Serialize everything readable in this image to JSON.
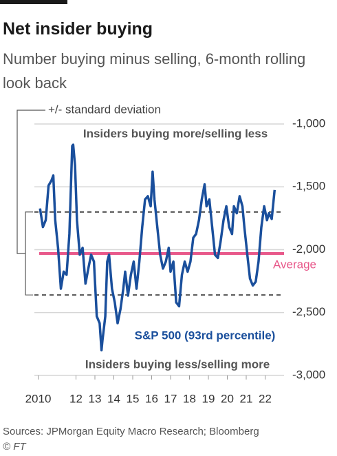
{
  "chart_data": {
    "type": "line",
    "title": "Net insider buying",
    "subtitle": "Number buying minus selling, 6-month rolling look back",
    "source": "Sources: JPMorgan Equity Macro Research; Bloomberg",
    "credit": "© FT",
    "annotations": {
      "top": "Insiders buying more/selling less",
      "bottom": "Insiders buying less/selling more"
    },
    "average": {
      "value": -2030,
      "label": "Average",
      "color": "#e8588a"
    },
    "std_band": {
      "upper": -1700,
      "lower": -2360,
      "label": "+/- standard deviation"
    },
    "x": [
      2010.1,
      2010.25,
      2010.4,
      2010.55,
      2010.7,
      2010.8,
      2010.9,
      2011.05,
      2011.2,
      2011.35,
      2011.5,
      2011.65,
      2011.8,
      2011.85,
      2011.95,
      2012.05,
      2012.2,
      2012.35,
      2012.5,
      2012.65,
      2012.8,
      2012.95,
      2013.1,
      2013.25,
      2013.35,
      2013.4,
      2013.55,
      2013.65,
      2013.75,
      2013.9,
      2014.05,
      2014.2,
      2014.35,
      2014.5,
      2014.6,
      2014.75,
      2014.9,
      2015.05,
      2015.2,
      2015.35,
      2015.5,
      2015.65,
      2015.8,
      2015.95,
      2016.05,
      2016.15,
      2016.3,
      2016.45,
      2016.6,
      2016.75,
      2016.9,
      2017.0,
      2017.15,
      2017.3,
      2017.45,
      2017.6,
      2017.75,
      2017.9,
      2018.05,
      2018.2,
      2018.35,
      2018.5,
      2018.65,
      2018.8,
      2018.9,
      2019.05,
      2019.2,
      2019.35,
      2019.5,
      2019.65,
      2019.8,
      2019.95,
      2020.1,
      2020.25,
      2020.35,
      2020.5,
      2020.65,
      2020.8,
      2020.9,
      2021.1,
      2021.2,
      2021.35,
      2021.5,
      2021.65,
      2021.8,
      2021.95,
      2022.1,
      2022.2,
      2022.35,
      2022.5
    ],
    "series": [
      {
        "name": "S&P 500 (93rd percentile)",
        "color": "#1a4f9c",
        "values": [
          -1672,
          -1820,
          -1765,
          -1490,
          -1450,
          -1410,
          -1765,
          -1985,
          -2310,
          -2175,
          -2200,
          -1875,
          -1175,
          -1165,
          -1330,
          -1765,
          -2040,
          -1985,
          -2270,
          -2150,
          -2040,
          -2095,
          -2530,
          -2585,
          -2800,
          -2720,
          -2530,
          -2095,
          -2040,
          -2310,
          -2420,
          -2585,
          -2475,
          -2310,
          -2175,
          -2365,
          -2200,
          -2095,
          -2310,
          -2095,
          -1820,
          -1600,
          -1575,
          -1655,
          -1380,
          -1600,
          -1820,
          -2040,
          -2150,
          -2095,
          -1985,
          -2175,
          -2095,
          -2420,
          -2450,
          -2200,
          -2095,
          -2175,
          -2095,
          -1905,
          -1875,
          -1765,
          -1600,
          -1480,
          -1655,
          -1600,
          -1820,
          -2040,
          -2065,
          -1930,
          -1765,
          -1655,
          -1820,
          -1875,
          -1655,
          -1710,
          -1575,
          -1655,
          -1820,
          -2095,
          -2230,
          -2285,
          -2255,
          -2095,
          -1820,
          -1655,
          -1765,
          -1710,
          -1755,
          -1525
        ]
      }
    ],
    "xlim": [
      2009.8,
      2023
    ],
    "xticks": [
      2010,
      {
        "value": 2012,
        "label": "12"
      },
      {
        "value": 2013,
        "label": "13"
      },
      {
        "value": 2014,
        "label": "14"
      },
      {
        "value": 2015,
        "label": "15"
      },
      {
        "value": 2016,
        "label": "16"
      },
      {
        "value": 2017,
        "label": "17"
      },
      {
        "value": 2018,
        "label": "18"
      },
      {
        "value": 2019,
        "label": "19"
      },
      {
        "value": 2020,
        "label": "20"
      },
      {
        "value": 2021,
        "label": "21"
      },
      {
        "value": 2022,
        "label": "22"
      }
    ],
    "ylim": [
      -3000,
      -1000
    ],
    "yticks": [
      {
        "value": -1000,
        "label": "-1,000"
      },
      {
        "value": -1500,
        "label": "-1,500"
      },
      {
        "value": -2000,
        "label": "-2,000"
      },
      {
        "value": -2500,
        "label": "-2,500"
      },
      {
        "value": -3000,
        "label": "-3,000"
      }
    ],
    "grid": true
  }
}
